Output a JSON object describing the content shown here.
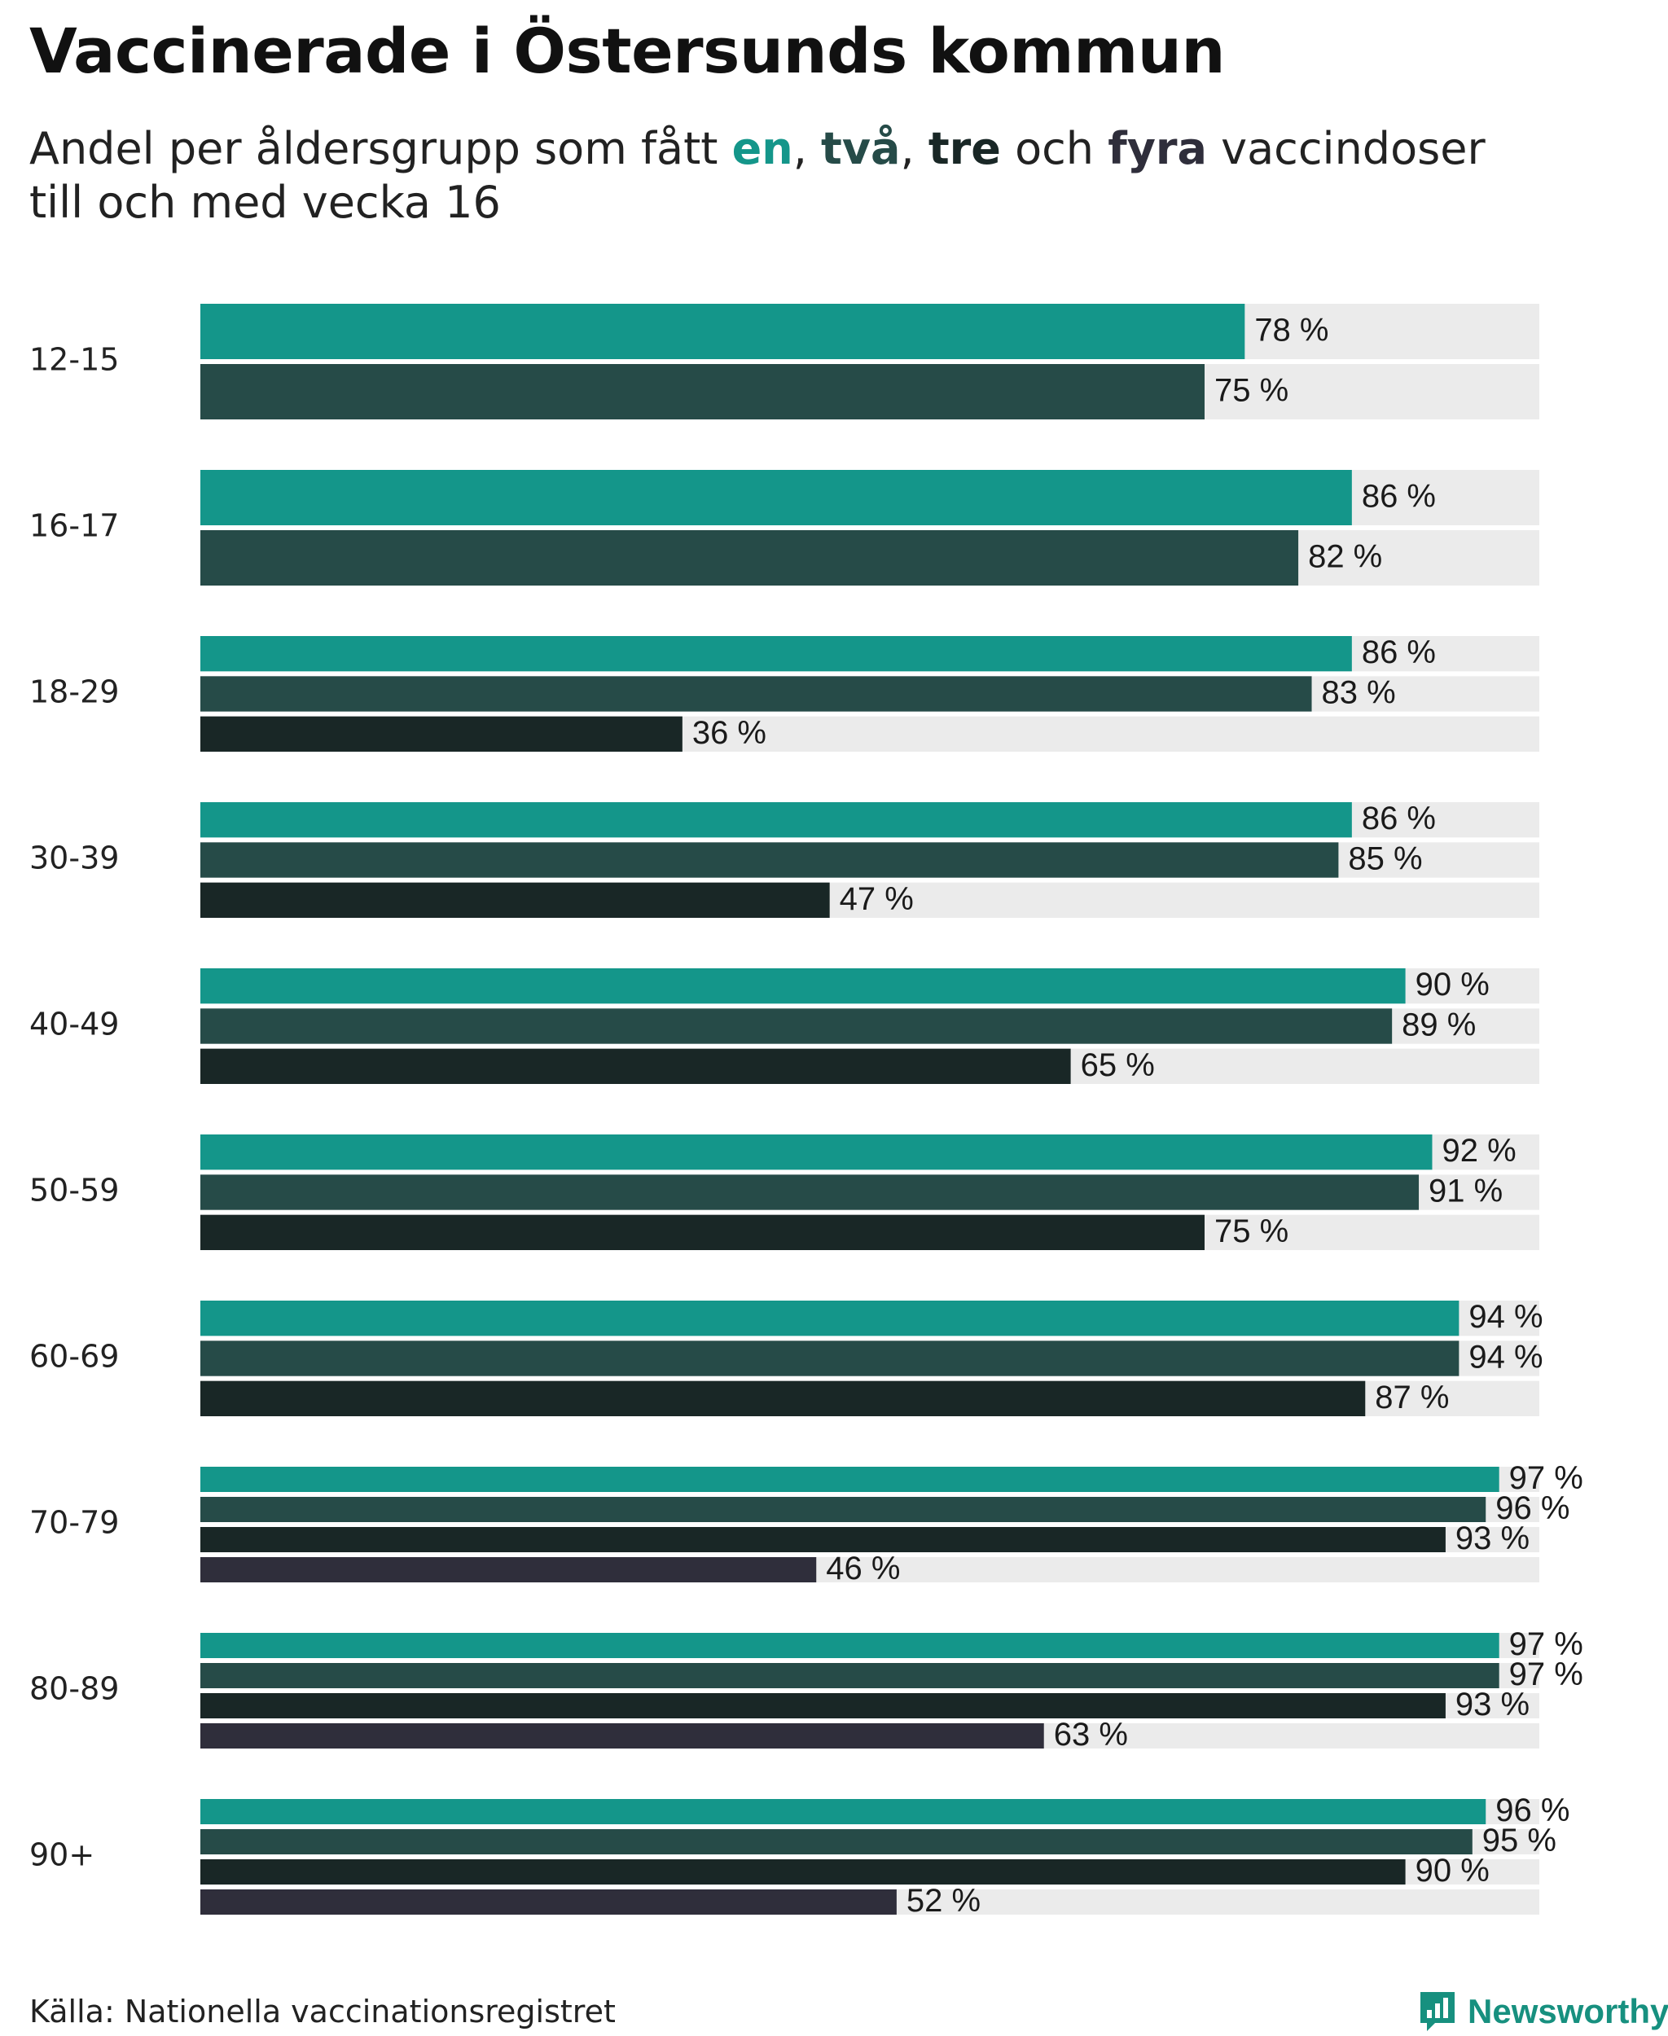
{
  "title": "Vaccinerade i Östersunds kommun",
  "subtitle": {
    "prefix": "Andel per åldersgrupp som fått ",
    "kw1": "en",
    "sep1": ", ",
    "kw2": "två",
    "sep2": ", ",
    "kw3": "tre",
    "sep3": " och ",
    "kw4": "fyra",
    "suffix": " vaccindoser",
    "line2": "till och med vecka 16"
  },
  "colors": {
    "dose1": "#14968a",
    "dose2": "#264b48",
    "dose3": "#192726",
    "dose4": "#2f2e3b",
    "track": "#ebebeb"
  },
  "value_suffix": " %",
  "source": "Källa: Nationella vaccinationsregistret",
  "brand": {
    "name": "Newsworthy",
    "icon": "newsworthy-logo-icon"
  },
  "chart_data": {
    "type": "bar",
    "orientation": "horizontal",
    "title": "Vaccinerade i Östersunds kommun",
    "xlim": [
      0,
      100
    ],
    "unit": "%",
    "categories": [
      "12-15",
      "16-17",
      "18-29",
      "30-39",
      "40-49",
      "50-59",
      "60-69",
      "70-79",
      "80-89",
      "90+"
    ],
    "series": [
      {
        "name": "en",
        "values": [
          78,
          86,
          86,
          86,
          90,
          92,
          94,
          97,
          97,
          96
        ]
      },
      {
        "name": "två",
        "values": [
          75,
          82,
          83,
          85,
          89,
          91,
          94,
          96,
          97,
          95
        ]
      },
      {
        "name": "tre",
        "values": [
          null,
          null,
          36,
          47,
          65,
          75,
          87,
          93,
          93,
          90
        ]
      },
      {
        "name": "fyra",
        "values": [
          null,
          null,
          null,
          null,
          null,
          null,
          null,
          46,
          63,
          52
        ]
      }
    ]
  }
}
